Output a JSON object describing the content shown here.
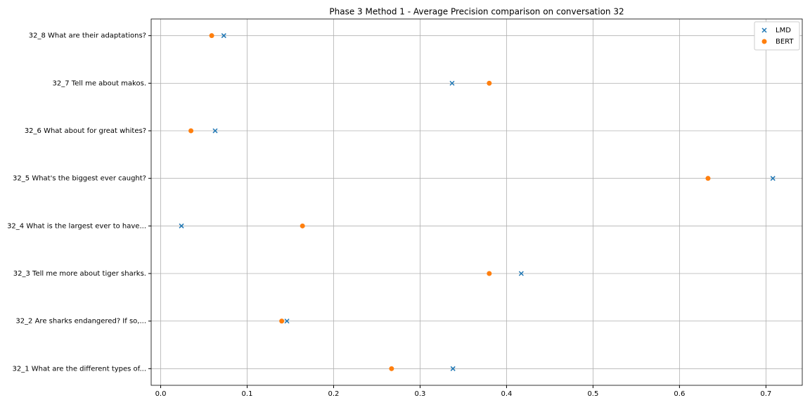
{
  "chart_data": {
    "type": "scatter",
    "title": "Phase 3 Method 1 - Average Precision comparison on conversation 32",
    "categories": [
      "32_1 What are the different types of...",
      "32_2 Are sharks endangered? If so,...",
      "32_3 Tell me more about tiger sharks.",
      "32_4 What is the largest ever to have...",
      "32_5 What's the biggest ever caught?",
      "32_6 What about for great whites?",
      "32_7 Tell me about makos.",
      "32_8 What are their adaptations?"
    ],
    "series": [
      {
        "name": "LMD",
        "color": "#1f77b4",
        "marker": "x",
        "values": [
          0.338,
          0.146,
          0.417,
          0.024,
          0.708,
          0.063,
          0.337,
          0.073
        ]
      },
      {
        "name": "BERT",
        "color": "#ff7f0e",
        "marker": "o",
        "values": [
          0.267,
          0.14,
          0.38,
          0.164,
          0.633,
          0.035,
          0.38,
          0.059
        ]
      }
    ],
    "xlim": [
      -0.011,
      0.742
    ],
    "xticks": [
      {
        "value": 0,
        "label": "0.0"
      },
      0.1,
      0.2,
      0.3,
      0.4,
      0.5,
      0.6,
      0.7
    ],
    "grid": true,
    "legend": "upper right"
  }
}
